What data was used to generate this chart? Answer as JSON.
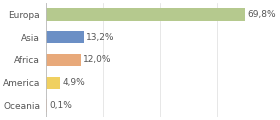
{
  "categories": [
    "Europa",
    "Asia",
    "Africa",
    "America",
    "Oceania"
  ],
  "values": [
    69.8,
    13.2,
    12.0,
    4.9,
    0.1
  ],
  "labels": [
    "69,8%",
    "13,2%",
    "12,0%",
    "4,9%",
    "0,1%"
  ],
  "bar_colors": [
    "#b5c98e",
    "#6b8fc5",
    "#e8a97a",
    "#f0d060",
    "#f5c0a0"
  ],
  "background_color": "#ffffff",
  "label_fontsize": 6.5,
  "category_fontsize": 6.5,
  "xlim": [
    0,
    80
  ],
  "bar_height": 0.55,
  "grid_color": "#dddddd",
  "text_color": "#555555"
}
